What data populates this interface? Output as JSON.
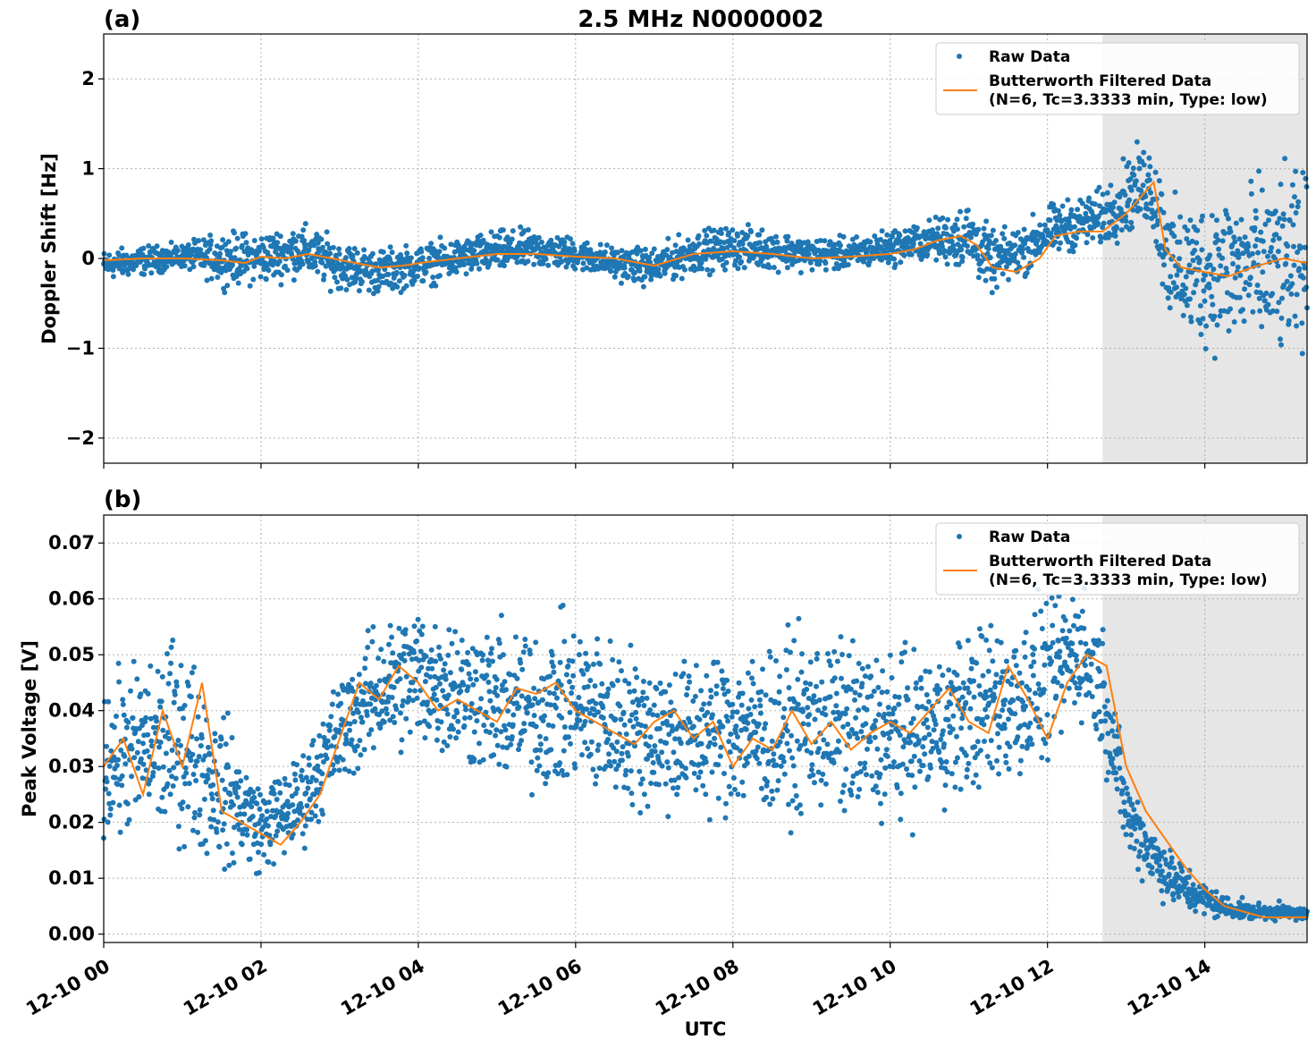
{
  "figure": {
    "title": "2.5 MHz N0000002",
    "xlabel": "UTC"
  },
  "colors": {
    "raw": "#1f77b4",
    "filtered": "#ff7f0e",
    "shade": "#e6e6e6"
  },
  "legend": {
    "raw": "Raw Data",
    "filtered_line1": "Butterworth Filtered Data",
    "filtered_line2": "(N=6, Tc=3.3333 min, Type: low)"
  },
  "chart_data": [
    {
      "type": "scatter",
      "panel_label": "(a)",
      "ylabel": "Doppler Shift [Hz]",
      "xlim": [
        0,
        15.3
      ],
      "ylim": [
        -2.28,
        2.5
      ],
      "yticks": [
        -2,
        -1,
        0,
        1,
        2
      ],
      "ytick_labels": [
        "−2",
        "−1",
        "0",
        "1",
        "2"
      ],
      "grid": true,
      "legend_position": "top-right",
      "shaded_region_hours": [
        12.7,
        15.3
      ],
      "series": [
        {
          "name": "Raw Data",
          "kind": "points",
          "envelope": {
            "x": [
              0,
              0.5,
              1.0,
              1.5,
              2.0,
              2.5,
              3.0,
              3.5,
              4.0,
              4.5,
              5.0,
              5.5,
              6.0,
              6.5,
              7.0,
              7.5,
              8.0,
              8.5,
              9.0,
              9.5,
              10.0,
              10.5,
              11.0,
              11.3,
              11.7,
              12.0,
              12.4,
              12.7,
              13.0,
              13.3,
              13.6,
              14.0,
              14.5,
              15.0,
              15.3
            ],
            "low": [
              -0.3,
              -0.25,
              -0.15,
              -0.4,
              -0.4,
              -0.3,
              -0.45,
              -0.5,
              -0.4,
              -0.3,
              -0.25,
              -0.2,
              -0.2,
              -0.3,
              -0.4,
              -0.25,
              -0.2,
              -0.2,
              -0.2,
              -0.2,
              -0.15,
              -0.1,
              -0.3,
              -0.5,
              -0.3,
              -0.1,
              0.0,
              0.0,
              0.1,
              0.2,
              -1.2,
              -1.3,
              -1.4,
              -1.5,
              -1.4
            ],
            "high": [
              0.15,
              0.2,
              0.2,
              0.4,
              0.4,
              0.5,
              0.3,
              0.2,
              0.25,
              0.3,
              0.4,
              0.4,
              0.3,
              0.2,
              0.2,
              0.4,
              0.45,
              0.4,
              0.3,
              0.3,
              0.4,
              0.5,
              0.8,
              0.4,
              0.5,
              0.7,
              0.8,
              0.9,
              1.3,
              1.5,
              0.9,
              1.0,
              1.2,
              1.3,
              1.3
            ]
          }
        },
        {
          "name": "Butterworth Filtered Data",
          "kind": "line",
          "x": [
            0,
            0.5,
            1.0,
            1.5,
            1.8,
            2.0,
            2.3,
            2.6,
            2.9,
            3.2,
            3.5,
            3.8,
            4.1,
            4.5,
            5.0,
            5.5,
            6.0,
            6.5,
            7.0,
            7.5,
            8.0,
            8.5,
            9.0,
            9.5,
            10.0,
            10.3,
            10.6,
            10.9,
            11.1,
            11.3,
            11.6,
            11.9,
            12.1,
            12.4,
            12.7,
            13.0,
            13.2,
            13.35,
            13.5,
            13.7,
            14.0,
            14.3,
            14.6,
            15.0,
            15.3
          ],
          "y": [
            -0.02,
            0.0,
            0.0,
            -0.02,
            -0.05,
            0.02,
            0.0,
            0.05,
            0.0,
            -0.05,
            -0.1,
            -0.08,
            -0.04,
            0.0,
            0.05,
            0.05,
            0.02,
            0.0,
            -0.08,
            0.05,
            0.08,
            0.05,
            0.0,
            0.02,
            0.05,
            0.1,
            0.2,
            0.25,
            0.15,
            -0.1,
            -0.15,
            0.0,
            0.25,
            0.3,
            0.3,
            0.5,
            0.7,
            0.85,
            0.1,
            -0.1,
            -0.15,
            -0.2,
            -0.1,
            0.0,
            -0.05
          ]
        }
      ]
    },
    {
      "type": "scatter",
      "panel_label": "(b)",
      "ylabel": "Peak Voltage [V]",
      "xlim": [
        0,
        15.3
      ],
      "ylim": [
        -0.0015,
        0.075
      ],
      "yticks": [
        0.0,
        0.01,
        0.02,
        0.03,
        0.04,
        0.05,
        0.06,
        0.07
      ],
      "ytick_labels": [
        "0.00",
        "0.01",
        "0.02",
        "0.03",
        "0.04",
        "0.05",
        "0.06",
        "0.07"
      ],
      "xticks": [
        0,
        2,
        4,
        6,
        8,
        10,
        12,
        14
      ],
      "xtick_labels": [
        "12-10 00",
        "12-10 02",
        "12-10 04",
        "12-10 06",
        "12-10 08",
        "12-10 10",
        "12-10 12",
        "12-10 14"
      ],
      "grid": true,
      "legend_position": "top-right",
      "shaded_region_hours": [
        12.7,
        15.3
      ],
      "series": [
        {
          "name": "Raw Data",
          "kind": "points",
          "envelope": {
            "x": [
              0,
              0.5,
              1.0,
              1.5,
              2.0,
              2.5,
              3.0,
              3.5,
              4.0,
              4.5,
              5.0,
              5.5,
              6.0,
              6.5,
              7.0,
              7.5,
              8.0,
              8.5,
              9.0,
              9.5,
              10.0,
              10.5,
              11.0,
              11.5,
              12.0,
              12.4,
              12.7,
              13.0,
              13.3,
              13.6,
              13.9,
              14.2,
              14.6,
              15.0,
              15.3
            ],
            "low": [
              0.012,
              0.012,
              0.01,
              0.007,
              0.008,
              0.012,
              0.022,
              0.028,
              0.028,
              0.026,
              0.022,
              0.02,
              0.02,
              0.018,
              0.016,
              0.016,
              0.016,
              0.015,
              0.016,
              0.015,
              0.014,
              0.018,
              0.02,
              0.02,
              0.025,
              0.035,
              0.028,
              0.012,
              0.006,
              0.003,
              0.002,
              0.002,
              0.002,
              0.002,
              0.002
            ],
            "high": [
              0.05,
              0.055,
              0.06,
              0.045,
              0.03,
              0.035,
              0.05,
              0.06,
              0.065,
              0.062,
              0.06,
              0.06,
              0.062,
              0.058,
              0.056,
              0.055,
              0.058,
              0.056,
              0.06,
              0.058,
              0.057,
              0.055,
              0.06,
              0.063,
              0.065,
              0.068,
              0.06,
              0.032,
              0.024,
              0.016,
              0.012,
              0.008,
              0.006,
              0.006,
              0.005
            ]
          }
        },
        {
          "name": "Butterworth Filtered Data",
          "kind": "line",
          "x": [
            0,
            0.25,
            0.5,
            0.75,
            1.0,
            1.25,
            1.5,
            1.75,
            2.0,
            2.25,
            2.5,
            2.75,
            3.0,
            3.25,
            3.5,
            3.75,
            4.0,
            4.25,
            4.5,
            4.75,
            5.0,
            5.25,
            5.5,
            5.75,
            6.0,
            6.25,
            6.5,
            6.75,
            7.0,
            7.25,
            7.5,
            7.75,
            8.0,
            8.25,
            8.5,
            8.75,
            9.0,
            9.25,
            9.5,
            9.75,
            10.0,
            10.25,
            10.5,
            10.75,
            11.0,
            11.25,
            11.5,
            11.75,
            12.0,
            12.25,
            12.5,
            12.75,
            13.0,
            13.25,
            13.5,
            13.75,
            14.0,
            14.25,
            14.5,
            14.75,
            15.0,
            15.3
          ],
          "y": [
            0.03,
            0.035,
            0.025,
            0.04,
            0.03,
            0.045,
            0.022,
            0.02,
            0.018,
            0.016,
            0.02,
            0.025,
            0.035,
            0.045,
            0.042,
            0.048,
            0.045,
            0.04,
            0.042,
            0.04,
            0.038,
            0.044,
            0.043,
            0.045,
            0.04,
            0.038,
            0.036,
            0.034,
            0.038,
            0.04,
            0.035,
            0.038,
            0.03,
            0.035,
            0.033,
            0.04,
            0.034,
            0.038,
            0.033,
            0.036,
            0.038,
            0.036,
            0.04,
            0.044,
            0.038,
            0.036,
            0.048,
            0.042,
            0.035,
            0.045,
            0.05,
            0.048,
            0.03,
            0.022,
            0.017,
            0.012,
            0.008,
            0.005,
            0.004,
            0.003,
            0.003,
            0.003
          ]
        }
      ]
    }
  ]
}
